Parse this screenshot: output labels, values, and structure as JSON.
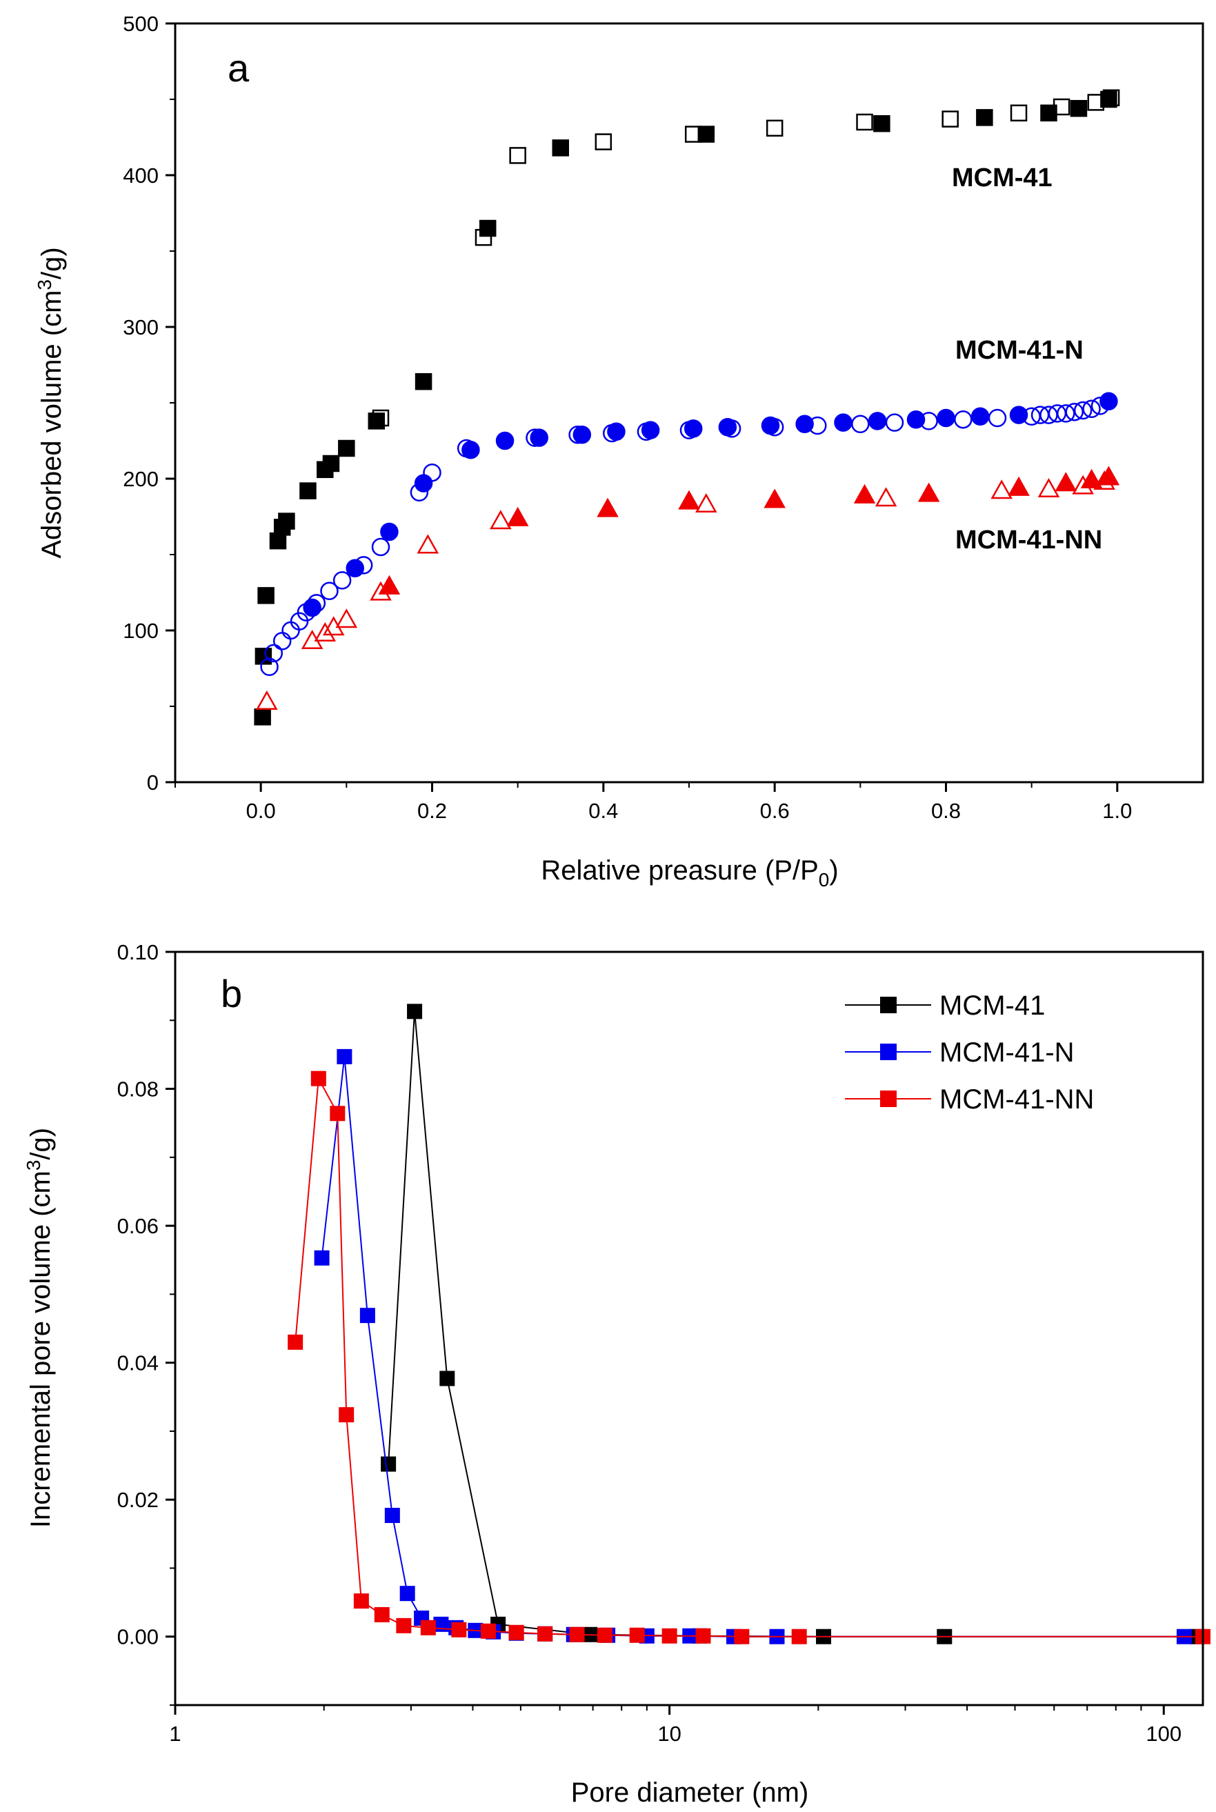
{
  "chart_data": [
    {
      "type": "scatter",
      "panel_label": "a",
      "xlabel": "Relative preasure (P/P",
      "xlabel_sub": "0",
      "xlabel_end": ")",
      "ylabel": "Adsorbed volume  (cm",
      "ylabel_sup": "3",
      "ylabel_end": "/g)",
      "xlim": [
        -0.1,
        1.1
      ],
      "ylim": [
        0,
        500
      ],
      "x_ticks": [
        0.0,
        0.2,
        0.4,
        0.6,
        0.8,
        1.0
      ],
      "x_tick_labels": [
        "0.0",
        "0.2",
        "0.4",
        "0.6",
        "0.8",
        "1.0"
      ],
      "y_ticks": [
        0,
        100,
        200,
        300,
        400,
        500
      ],
      "y_tick_labels": [
        "0",
        "100",
        "200",
        "300",
        "400",
        "500"
      ],
      "series_labels": [
        "MCM-41",
        "MCM-41-N",
        "MCM-41-NN"
      ],
      "series": [
        {
          "name": "MCM-41 adsorption",
          "color": "#000000",
          "marker": "square",
          "filled": true,
          "x": [
            0.002,
            0.003,
            0.006,
            0.02,
            0.025,
            0.03,
            0.055,
            0.075,
            0.082,
            0.1,
            0.135,
            0.19,
            0.265,
            0.35,
            0.52,
            0.725,
            0.845,
            0.92,
            0.955,
            0.99
          ],
          "y": [
            43,
            83,
            123,
            159,
            168,
            172,
            192,
            206,
            210,
            220,
            238,
            264,
            365,
            418,
            427,
            434,
            438,
            441,
            444,
            450
          ]
        },
        {
          "name": "MCM-41 desorption",
          "color": "#000000",
          "marker": "square",
          "filled": false,
          "x": [
            0.14,
            0.26,
            0.3,
            0.4,
            0.505,
            0.6,
            0.705,
            0.805,
            0.885,
            0.935,
            0.975,
            0.993
          ],
          "y": [
            240,
            359,
            413,
            422,
            427,
            431,
            435,
            437,
            441,
            445,
            448,
            451
          ]
        },
        {
          "name": "MCM-41-N adsorption",
          "color": "#0000ee",
          "marker": "circle",
          "filled": true,
          "x": [
            0.06,
            0.11,
            0.15,
            0.19,
            0.245,
            0.285,
            0.325,
            0.375,
            0.415,
            0.455,
            0.505,
            0.545,
            0.595,
            0.635,
            0.68,
            0.72,
            0.765,
            0.8,
            0.84,
            0.885,
            0.99
          ],
          "y": [
            115,
            141,
            165,
            197,
            219,
            225,
            227,
            229,
            231,
            232,
            233,
            234,
            235,
            236,
            237,
            238,
            239,
            240,
            241,
            242,
            251
          ]
        },
        {
          "name": "MCM-41-N desorption",
          "color": "#0000ee",
          "marker": "circle",
          "filled": false,
          "x": [
            0.01,
            0.015,
            0.025,
            0.035,
            0.045,
            0.053,
            0.065,
            0.08,
            0.095,
            0.12,
            0.14,
            0.185,
            0.2,
            0.24,
            0.32,
            0.37,
            0.41,
            0.45,
            0.5,
            0.55,
            0.6,
            0.65,
            0.7,
            0.74,
            0.78,
            0.82,
            0.86,
            0.9,
            0.91,
            0.92,
            0.93,
            0.94,
            0.95,
            0.96,
            0.97,
            0.98
          ],
          "y": [
            76,
            85,
            93,
            100,
            106,
            112,
            118,
            126,
            133,
            143,
            155,
            191,
            204,
            220,
            227,
            229,
            230,
            231,
            232,
            233,
            234,
            235,
            236,
            237,
            238,
            239,
            240,
            241,
            242,
            242,
            243,
            243,
            244,
            245,
            246,
            248
          ]
        },
        {
          "name": "MCM-41-NN adsorption",
          "color": "#ee0000",
          "marker": "triangle",
          "filled": true,
          "x": [
            0.15,
            0.3,
            0.405,
            0.5,
            0.6,
            0.705,
            0.78,
            0.885,
            0.94,
            0.97,
            0.99
          ],
          "y": [
            129,
            174,
            180,
            185,
            186,
            189,
            190,
            194,
            197,
            199,
            201
          ]
        },
        {
          "name": "MCM-41-NN desorption",
          "color": "#ee0000",
          "marker": "triangle",
          "filled": false,
          "x": [
            0.007,
            0.06,
            0.075,
            0.085,
            0.1,
            0.14,
            0.195,
            0.28,
            0.52,
            0.73,
            0.865,
            0.92,
            0.96,
            0.985
          ],
          "y": [
            53,
            93,
            98,
            102,
            107,
            125,
            156,
            172,
            183,
            187,
            192,
            193,
            195,
            198
          ]
        }
      ]
    },
    {
      "type": "line",
      "panel_label": "b",
      "xlabel": "Pore diameter (nm)",
      "ylabel": "Incremental pore volume (cm",
      "ylabel_sup": "3",
      "ylabel_end": "/g)",
      "xscale": "log",
      "xlim": [
        1,
        120
      ],
      "ylim": [
        -0.01,
        0.1
      ],
      "x_ticks": [
        1,
        10,
        100
      ],
      "x_tick_labels": [
        "1",
        "10",
        "100"
      ],
      "y_ticks": [
        0.0,
        0.02,
        0.04,
        0.06,
        0.08,
        0.1
      ],
      "y_tick_labels": [
        "0.00",
        "0.02",
        "0.04",
        "0.06",
        "0.08",
        "0.10"
      ],
      "legend": [
        "MCM-41",
        "MCM-41-N",
        "MCM-41-NN"
      ],
      "legend_position": "top-right",
      "series": [
        {
          "name": "MCM-41",
          "color": "#000000",
          "x": [
            2.7,
            3.05,
            3.55,
            4.5,
            6.9,
            11.5,
            20.5,
            36.0,
            117.0
          ],
          "y": [
            0.0252,
            0.0913,
            0.0377,
            0.0018,
            0.0003,
            0.0001,
            0.0,
            0.0,
            0.0
          ]
        },
        {
          "name": "MCM-41-N",
          "color": "#0000ee",
          "x": [
            1.98,
            2.2,
            2.45,
            2.75,
            2.95,
            3.15,
            3.45,
            3.7,
            4.05,
            4.4,
            4.9,
            5.6,
            6.4,
            7.5,
            9.0,
            11.0,
            13.5,
            16.5,
            110.0
          ],
          "y": [
            0.0553,
            0.0847,
            0.0469,
            0.0177,
            0.0063,
            0.0027,
            0.0018,
            0.0013,
            0.0009,
            0.0007,
            0.0005,
            0.0004,
            0.0003,
            0.0002,
            0.0001,
            0.0001,
            0.0,
            0.0,
            0.0
          ]
        },
        {
          "name": "MCM-41-NN",
          "color": "#ee0000",
          "x": [
            1.75,
            1.95,
            2.13,
            2.22,
            2.38,
            2.62,
            2.9,
            3.25,
            3.75,
            4.3,
            4.9,
            5.6,
            6.5,
            7.4,
            8.6,
            10.0,
            11.7,
            14.0,
            18.3,
            120.0
          ],
          "y": [
            0.043,
            0.0815,
            0.0764,
            0.0324,
            0.0052,
            0.0032,
            0.0016,
            0.0013,
            0.001,
            0.0008,
            0.0006,
            0.0004,
            0.0003,
            0.0002,
            0.0002,
            0.0001,
            0.0001,
            0.0,
            0.0,
            0.0
          ]
        }
      ]
    }
  ]
}
